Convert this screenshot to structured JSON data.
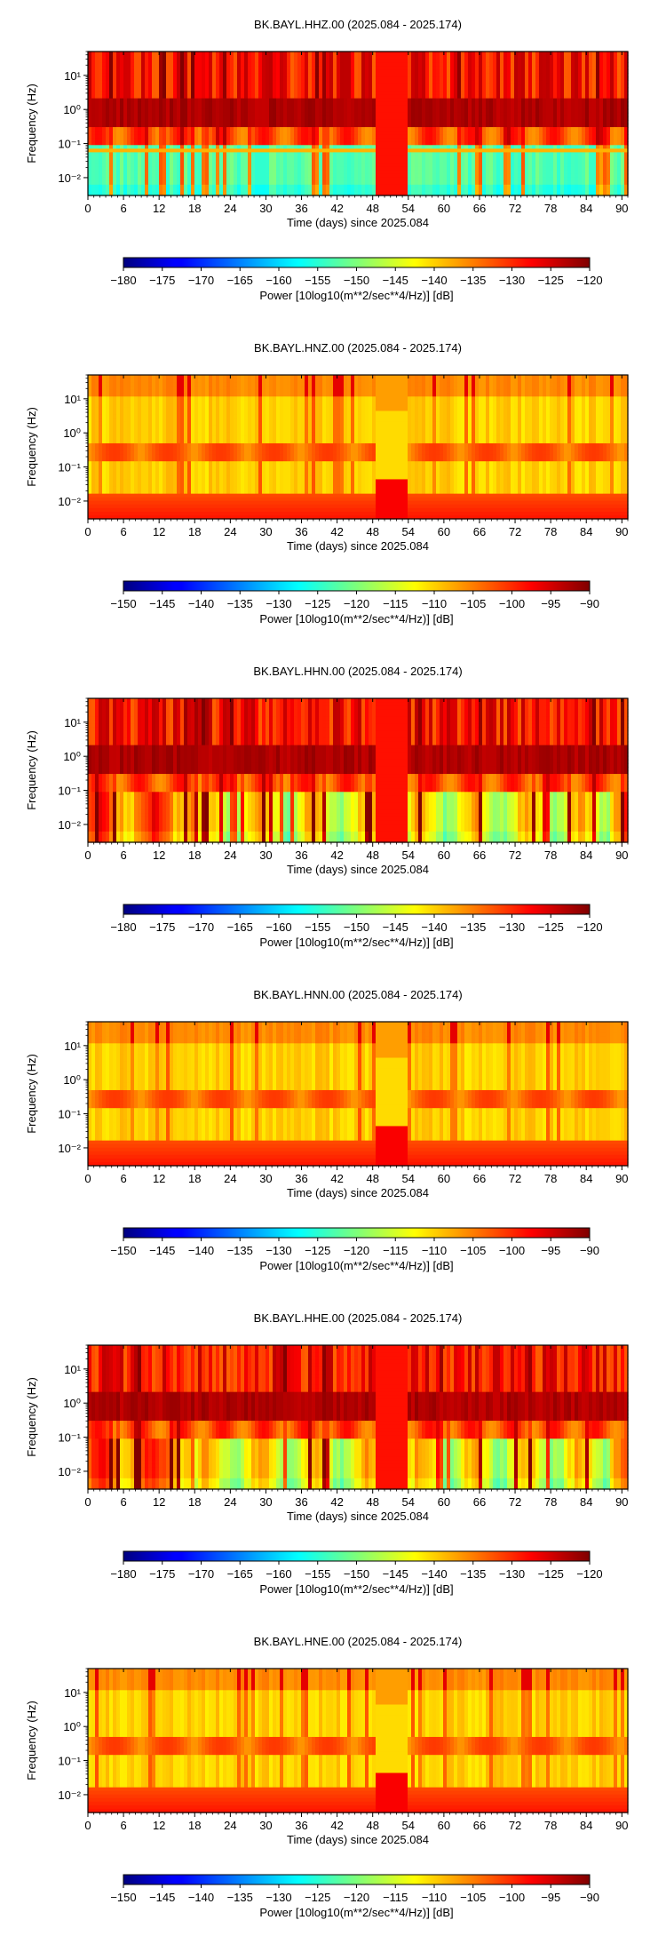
{
  "chart_data": [
    {
      "type": "heatmap",
      "title": "BK.BAYL.HHZ.00 (2025.084 - 2025.174)",
      "xlabel": "Time (days) since 2025.084",
      "ylabel": "Frequency (Hz)",
      "x_ticks": [
        0,
        6,
        12,
        18,
        24,
        30,
        36,
        42,
        48,
        54,
        60,
        66,
        72,
        78,
        84,
        90
      ],
      "xlim": [
        0,
        91
      ],
      "y_scale": "log",
      "ylim": [
        0.003,
        50
      ],
      "y_ticks": [
        {
          "value": 10,
          "label": "10¹"
        },
        {
          "value": 1,
          "label": "10⁰"
        },
        {
          "value": 0.1,
          "label": "10⁻¹"
        },
        {
          "value": 0.01,
          "label": "10⁻²"
        }
      ],
      "colorbar": {
        "label": "Power [10log10(m**2/sec**4/Hz)] [dB]",
        "range": [
          -180,
          -120
        ],
        "ticks": [
          -180,
          -175,
          -170,
          -165,
          -160,
          -155,
          -150,
          -145,
          -140,
          -135,
          -130,
          -125,
          -120
        ],
        "colormap": "jet"
      },
      "data_gap_days": [
        48.5,
        54
      ]
    },
    {
      "type": "heatmap",
      "title": "BK.BAYL.HNZ.00 (2025.084 - 2025.174)",
      "xlabel": "Time (days) since 2025.084",
      "ylabel": "Frequency (Hz)",
      "x_ticks": [
        0,
        6,
        12,
        18,
        24,
        30,
        36,
        42,
        48,
        54,
        60,
        66,
        72,
        78,
        84,
        90
      ],
      "xlim": [
        0,
        91
      ],
      "y_scale": "log",
      "ylim": [
        0.003,
        50
      ],
      "y_ticks": [
        {
          "value": 10,
          "label": "10¹"
        },
        {
          "value": 1,
          "label": "10⁰"
        },
        {
          "value": 0.1,
          "label": "10⁻¹"
        },
        {
          "value": 0.01,
          "label": "10⁻²"
        }
      ],
      "colorbar": {
        "label": "Power [10log10(m**2/sec**4/Hz)] [dB]",
        "range": [
          -150,
          -90
        ],
        "ticks": [
          -150,
          -145,
          -140,
          -135,
          -130,
          -125,
          -120,
          -115,
          -110,
          -105,
          -100,
          -95,
          -90
        ],
        "colormap": "jet"
      },
      "data_gap_days": [
        48.5,
        54
      ]
    },
    {
      "type": "heatmap",
      "title": "BK.BAYL.HHN.00 (2025.084 - 2025.174)",
      "xlabel": "Time (days) since 2025.084",
      "ylabel": "Frequency (Hz)",
      "x_ticks": [
        0,
        6,
        12,
        18,
        24,
        30,
        36,
        42,
        48,
        54,
        60,
        66,
        72,
        78,
        84,
        90
      ],
      "xlim": [
        0,
        91
      ],
      "y_scale": "log",
      "ylim": [
        0.003,
        50
      ],
      "y_ticks": [
        {
          "value": 10,
          "label": "10¹"
        },
        {
          "value": 1,
          "label": "10⁰"
        },
        {
          "value": 0.1,
          "label": "10⁻¹"
        },
        {
          "value": 0.01,
          "label": "10⁻²"
        }
      ],
      "colorbar": {
        "label": "Power [10log10(m**2/sec**4/Hz)] [dB]",
        "range": [
          -180,
          -120
        ],
        "ticks": [
          -180,
          -175,
          -170,
          -165,
          -160,
          -155,
          -150,
          -145,
          -140,
          -135,
          -130,
          -125,
          -120
        ],
        "colormap": "jet"
      },
      "data_gap_days": [
        48.5,
        54
      ]
    },
    {
      "type": "heatmap",
      "title": "BK.BAYL.HNN.00 (2025.084 - 2025.174)",
      "xlabel": "Time (days) since 2025.084",
      "ylabel": "Frequency (Hz)",
      "x_ticks": [
        0,
        6,
        12,
        18,
        24,
        30,
        36,
        42,
        48,
        54,
        60,
        66,
        72,
        78,
        84,
        90
      ],
      "xlim": [
        0,
        91
      ],
      "y_scale": "log",
      "ylim": [
        0.003,
        50
      ],
      "y_ticks": [
        {
          "value": 10,
          "label": "10¹"
        },
        {
          "value": 1,
          "label": "10⁰"
        },
        {
          "value": 0.1,
          "label": "10⁻¹"
        },
        {
          "value": 0.01,
          "label": "10⁻²"
        }
      ],
      "colorbar": {
        "label": "Power [10log10(m**2/sec**4/Hz)] [dB]",
        "range": [
          -150,
          -90
        ],
        "ticks": [
          -150,
          -145,
          -140,
          -135,
          -130,
          -125,
          -120,
          -115,
          -110,
          -105,
          -100,
          -95,
          -90
        ],
        "colormap": "jet"
      },
      "data_gap_days": [
        48.5,
        54
      ]
    },
    {
      "type": "heatmap",
      "title": "BK.BAYL.HHE.00 (2025.084 - 2025.174)",
      "xlabel": "Time (days) since 2025.084",
      "ylabel": "Frequency (Hz)",
      "x_ticks": [
        0,
        6,
        12,
        18,
        24,
        30,
        36,
        42,
        48,
        54,
        60,
        66,
        72,
        78,
        84,
        90
      ],
      "xlim": [
        0,
        91
      ],
      "y_scale": "log",
      "ylim": [
        0.003,
        50
      ],
      "y_ticks": [
        {
          "value": 10,
          "label": "10¹"
        },
        {
          "value": 1,
          "label": "10⁰"
        },
        {
          "value": 0.1,
          "label": "10⁻¹"
        },
        {
          "value": 0.01,
          "label": "10⁻²"
        }
      ],
      "colorbar": {
        "label": "Power [10log10(m**2/sec**4/Hz)] [dB]",
        "range": [
          -180,
          -120
        ],
        "ticks": [
          -180,
          -175,
          -170,
          -165,
          -160,
          -155,
          -150,
          -145,
          -140,
          -135,
          -130,
          -125,
          -120
        ],
        "colormap": "jet"
      },
      "data_gap_days": [
        48.5,
        54
      ]
    },
    {
      "type": "heatmap",
      "title": "BK.BAYL.HNE.00 (2025.084 - 2025.174)",
      "xlabel": "Time (days) since 2025.084",
      "ylabel": "Frequency (Hz)",
      "x_ticks": [
        0,
        6,
        12,
        18,
        24,
        30,
        36,
        42,
        48,
        54,
        60,
        66,
        72,
        78,
        84,
        90
      ],
      "xlim": [
        0,
        91
      ],
      "y_scale": "log",
      "ylim": [
        0.003,
        50
      ],
      "y_ticks": [
        {
          "value": 10,
          "label": "10¹"
        },
        {
          "value": 1,
          "label": "10⁰"
        },
        {
          "value": 0.1,
          "label": "10⁻¹"
        },
        {
          "value": 0.01,
          "label": "10⁻²"
        }
      ],
      "colorbar": {
        "label": "Power [10log10(m**2/sec**4/Hz)] [dB]",
        "range": [
          -150,
          -90
        ],
        "ticks": [
          -150,
          -145,
          -140,
          -135,
          -130,
          -125,
          -120,
          -115,
          -110,
          -105,
          -100,
          -95,
          -90
        ],
        "colormap": "jet"
      },
      "data_gap_days": [
        48.5,
        54
      ]
    }
  ]
}
